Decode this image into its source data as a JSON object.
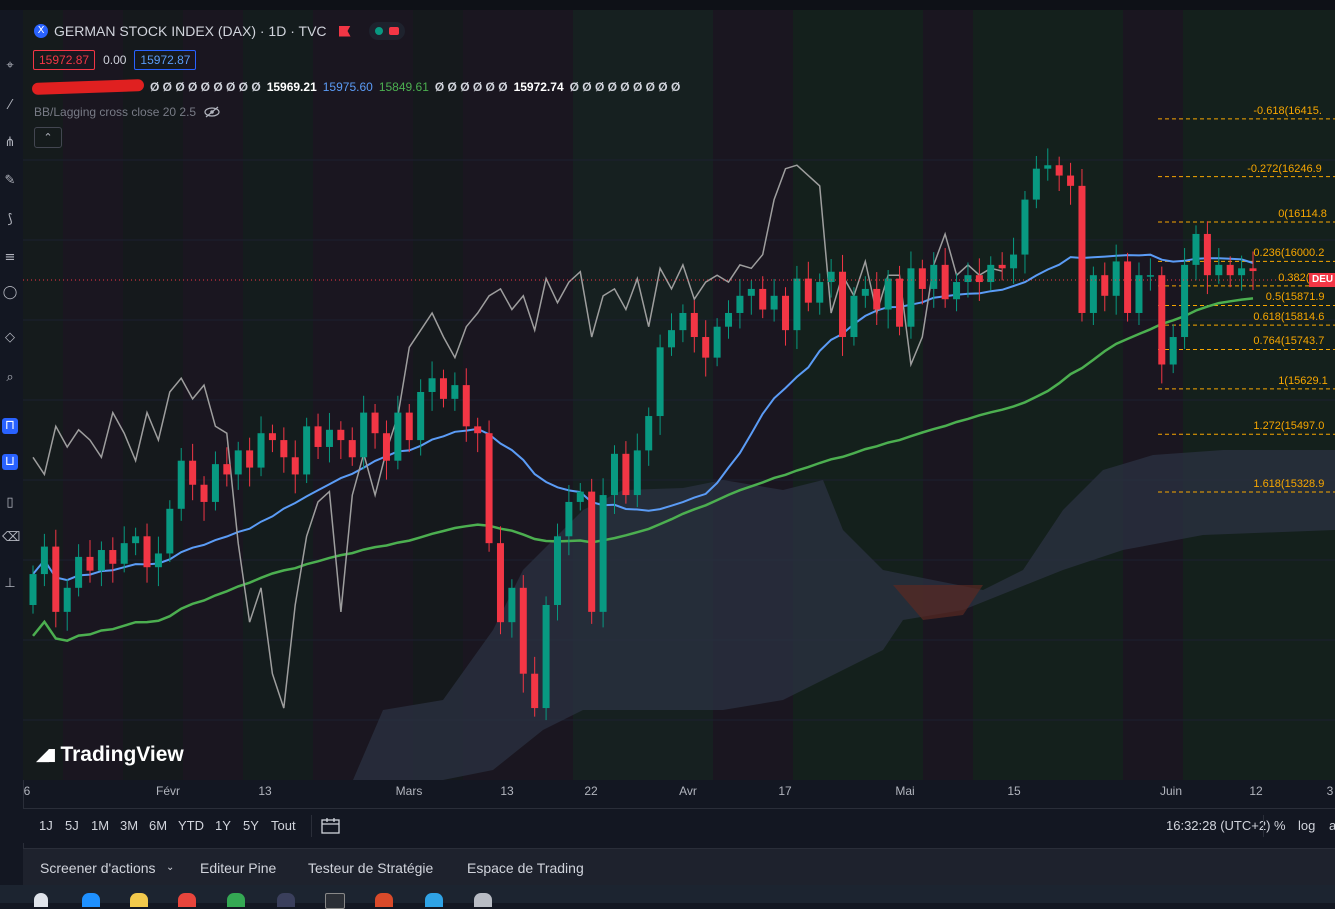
{
  "header": {
    "title": "GERMAN STOCK INDEX (DAX) · 1D · TVC",
    "symbol_badge": "X",
    "bid": "15972.87",
    "spread": "0.00",
    "ask": "15972.87",
    "indicator_values": [
      "15969.21",
      "15975.60",
      "15849.61",
      "15972.74"
    ],
    "ind_prefix": "Ø Ø Ø Ø Ø Ø Ø Ø Ø",
    "ind_mid": "Ø Ø Ø Ø Ø Ø",
    "ind_suffix": "Ø Ø Ø Ø Ø Ø Ø Ø Ø",
    "bb_label": "BB/Lagging cross close 20 2.5"
  },
  "price_tag": "DEU",
  "time_axis": [
    {
      "label": "6",
      "x": 27
    },
    {
      "label": "Févr",
      "x": 168
    },
    {
      "label": "13",
      "x": 265
    },
    {
      "label": "Mars",
      "x": 409
    },
    {
      "label": "13",
      "x": 507
    },
    {
      "label": "22",
      "x": 591
    },
    {
      "label": "Avr",
      "x": 688
    },
    {
      "label": "17",
      "x": 785
    },
    {
      "label": "Mai",
      "x": 905
    },
    {
      "label": "15",
      "x": 1014
    },
    {
      "label": "Juin",
      "x": 1171
    },
    {
      "label": "12",
      "x": 1256
    },
    {
      "label": "3",
      "x": 1330
    }
  ],
  "range_buttons": [
    "1J",
    "5J",
    "1M",
    "3M",
    "6M",
    "YTD",
    "1Y",
    "5Y",
    "Tout"
  ],
  "clock": "16:32:28 (UTC+2)",
  "scale_buttons": [
    "%",
    "log",
    "a"
  ],
  "bottom_panel": [
    "Screener d'actions",
    "Editeur Pine",
    "Testeur de Stratégie",
    "Espace de Trading"
  ],
  "brand": "TradingView",
  "colors": {
    "background": "#131722",
    "bull": "#089981",
    "bear": "#f23645",
    "bb_basis": "#5b9cf6",
    "ma_long": "#4caf50",
    "lagging": "#9e9e9e",
    "fib": "#f7a600"
  },
  "chart_data": {
    "type": "candlestick",
    "title": "GERMAN STOCK INDEX (DAX) · 1D · TVC",
    "x_labels": [
      "6",
      "Févr",
      "13",
      "Mars",
      "13",
      "22",
      "Avr",
      "17",
      "Mai",
      "15",
      "Juin",
      "12"
    ],
    "ylim": [
      14600,
      16500
    ],
    "fibonacci_levels": [
      {
        "ratio": "-0.618",
        "price": "16415.",
        "value": 16415
      },
      {
        "ratio": "-0.272",
        "price": "16246.9",
        "value": 16246.9
      },
      {
        "ratio": "0",
        "price": "16114.8",
        "value": 16114.8
      },
      {
        "ratio": "0.236",
        "price": "16000.2",
        "value": 16000.2
      },
      {
        "ratio": "0.382",
        "price": "159",
        "value": 15929
      },
      {
        "ratio": "0.5",
        "price": "15871.9",
        "value": 15871.9
      },
      {
        "ratio": "0.618",
        "price": "15814.6",
        "value": 15814.6
      },
      {
        "ratio": "0.764",
        "price": "15743.7",
        "value": 15743.7
      },
      {
        "ratio": "1",
        "price": "15629.1",
        "value": 15629.1
      },
      {
        "ratio": "1.272",
        "price": "15497.0",
        "value": 15497
      },
      {
        "ratio": "1.618",
        "price": "15328.9",
        "value": 15328.9
      }
    ],
    "last_price": 15972.87
  }
}
